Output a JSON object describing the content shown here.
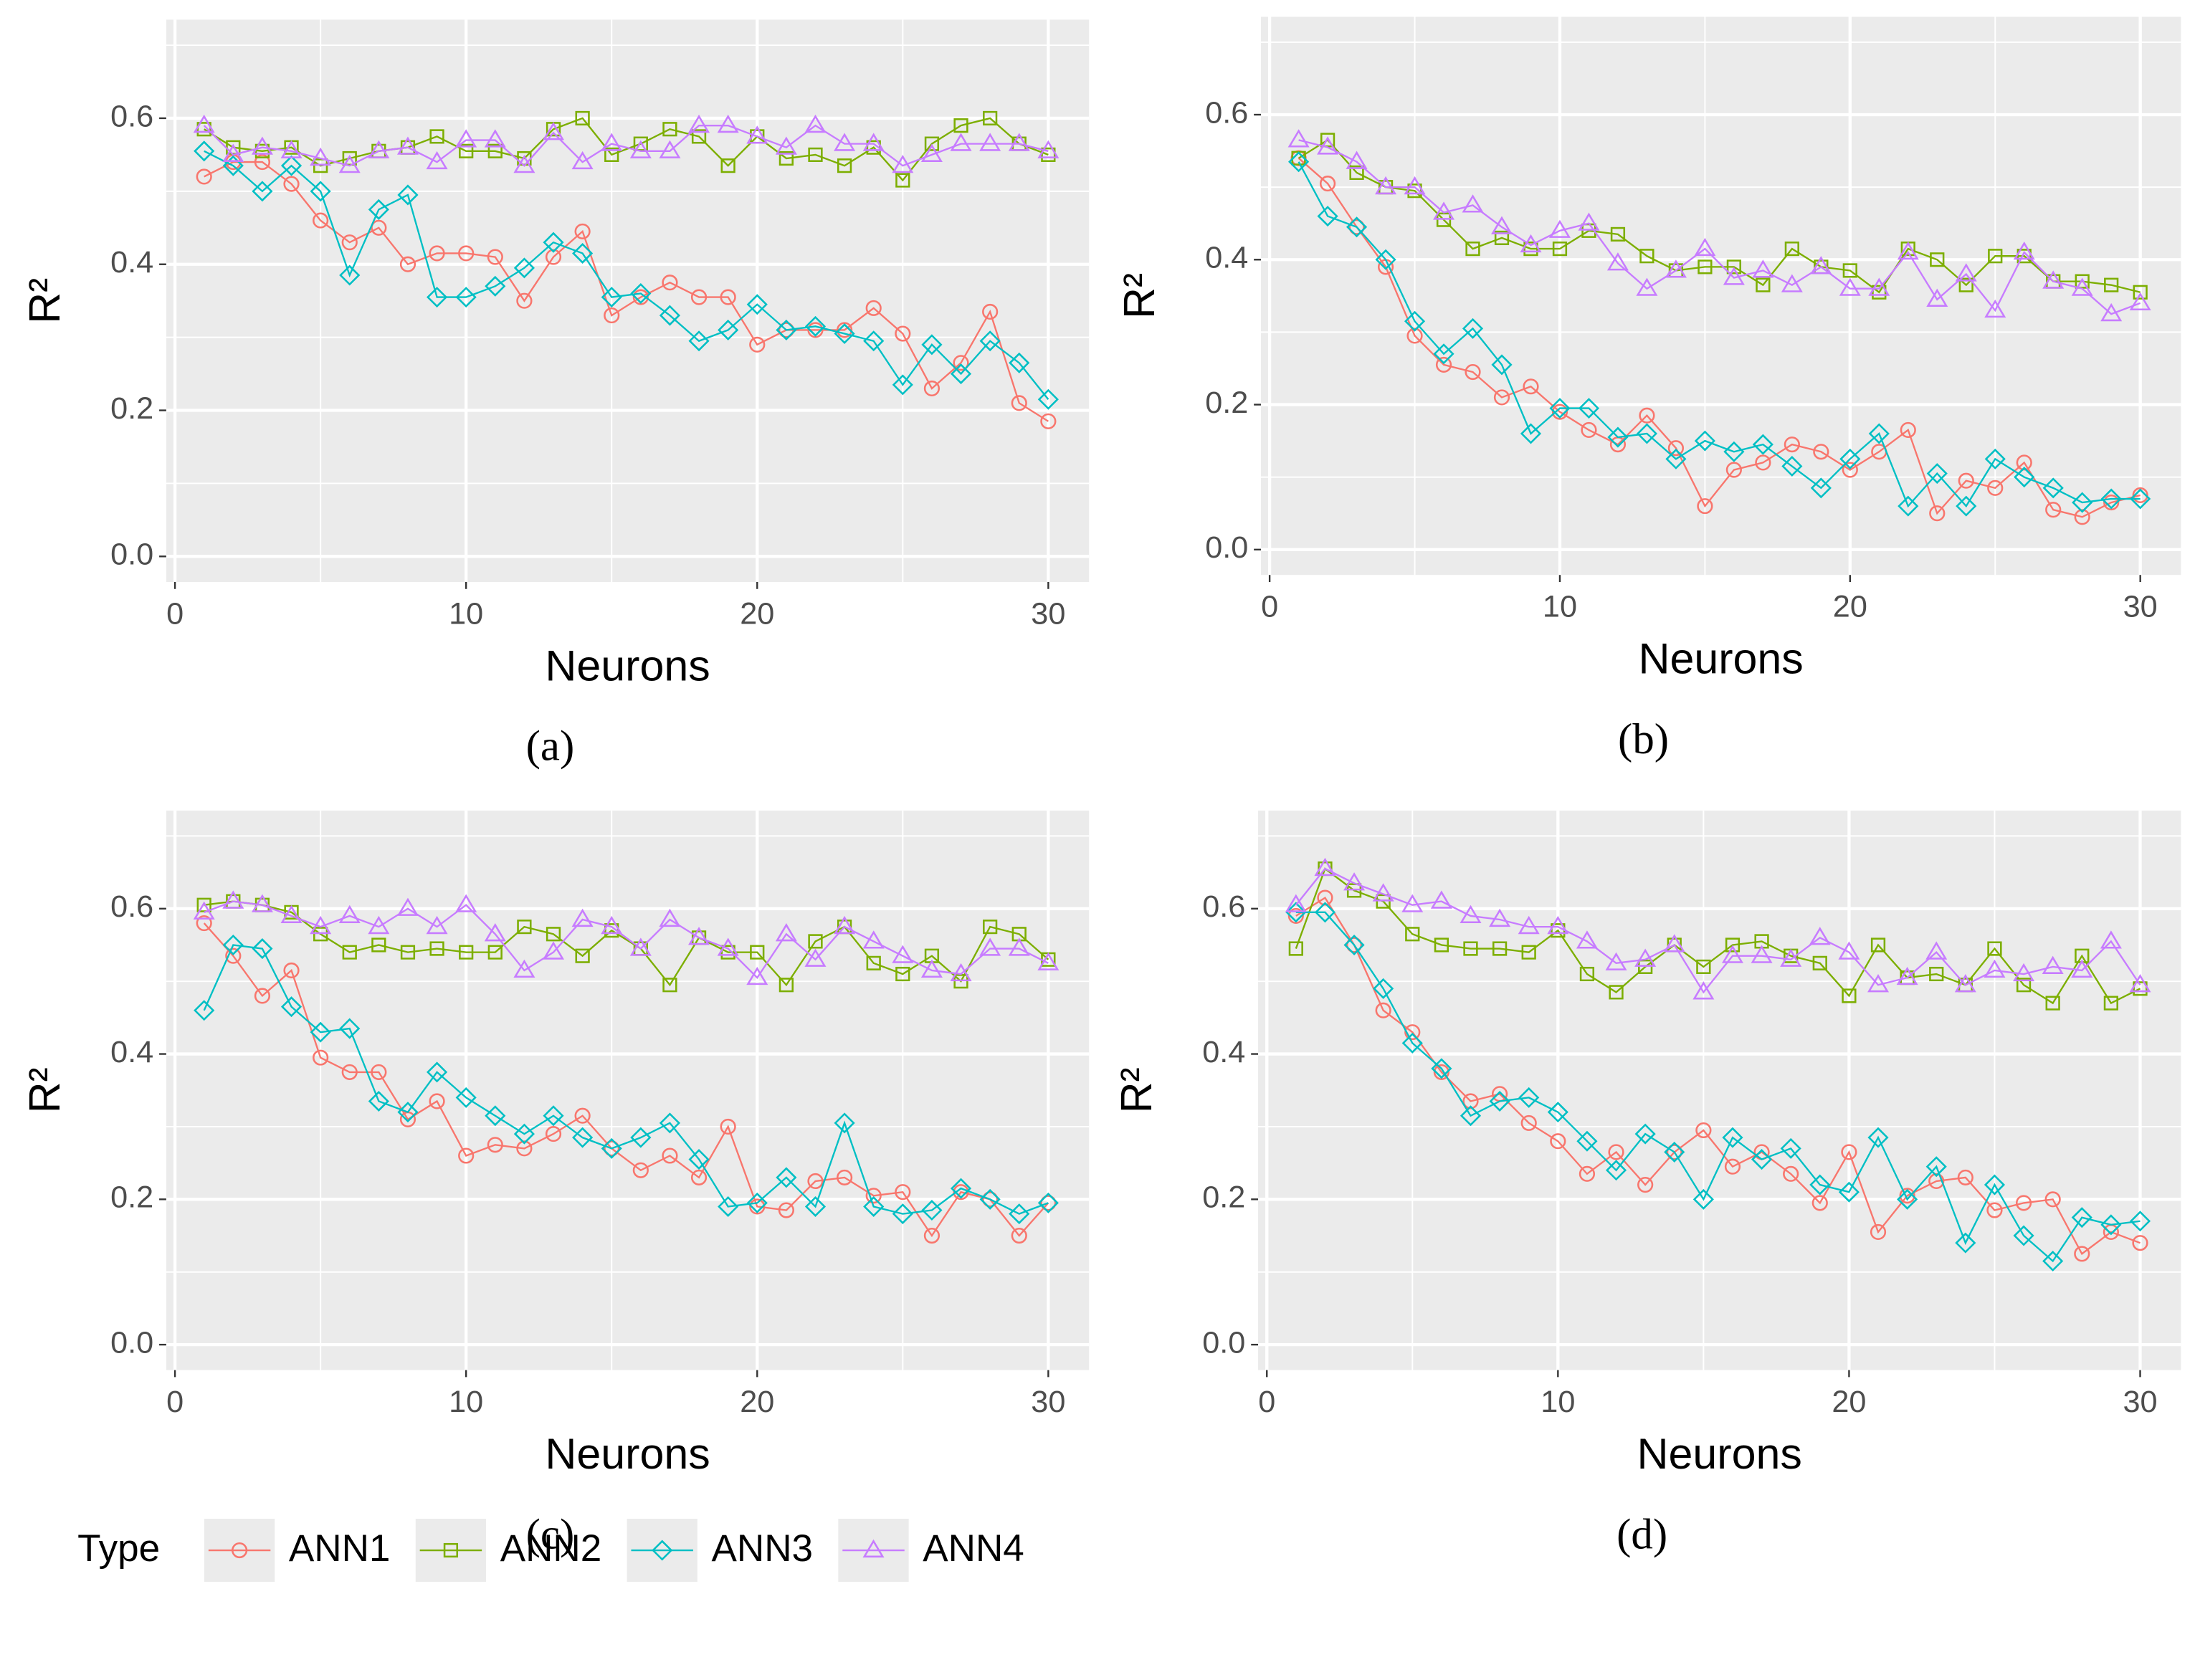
{
  "chart_data": [
    {
      "type": "line",
      "label": "(a)",
      "xlabel": "Neurons",
      "ylabel": "R²",
      "legend_title": "Type",
      "x": [
        1,
        2,
        3,
        4,
        5,
        6,
        7,
        8,
        9,
        10,
        11,
        12,
        13,
        14,
        15,
        16,
        17,
        18,
        19,
        20,
        21,
        22,
        23,
        24,
        25,
        26,
        27,
        28,
        29,
        30
      ],
      "xlim": [
        -0.3,
        31.4
      ],
      "ylim": [
        -0.035,
        0.735
      ],
      "xticks": [
        0,
        10,
        20,
        30
      ],
      "yticks": [
        {
          "value": 0,
          "label": "0.0"
        },
        0.2,
        0.4,
        0.6
      ],
      "x_minor_ticks": [
        5,
        15,
        25
      ],
      "y_minor_ticks": [
        0.1,
        0.3,
        0.5,
        0.7
      ],
      "grid": true,
      "series": [
        {
          "name": "ANN1",
          "color": "#F8766D",
          "marker": "circle",
          "values": [
            0.52,
            0.54,
            0.54,
            0.51,
            0.46,
            0.43,
            0.45,
            0.4,
            0.415,
            0.415,
            0.41,
            0.35,
            0.41,
            0.445,
            0.33,
            0.355,
            0.375,
            0.355,
            0.355,
            0.29,
            0.31,
            0.31,
            0.31,
            0.34,
            0.305,
            0.23,
            0.265,
            0.335,
            0.21,
            0.185
          ]
        },
        {
          "name": "ANN2",
          "color": "#7CAE00",
          "marker": "square",
          "values": [
            0.585,
            0.56,
            0.555,
            0.56,
            0.535,
            0.545,
            0.555,
            0.56,
            0.575,
            0.555,
            0.555,
            0.545,
            0.585,
            0.6,
            0.55,
            0.565,
            0.585,
            0.575,
            0.535,
            0.575,
            0.545,
            0.55,
            0.535,
            0.56,
            0.515,
            0.565,
            0.59,
            0.6,
            0.565,
            0.55
          ]
        },
        {
          "name": "ANN3",
          "color": "#00BFC4",
          "marker": "diamond",
          "values": [
            0.555,
            0.535,
            0.5,
            0.535,
            0.5,
            0.385,
            0.475,
            0.495,
            0.355,
            0.355,
            0.37,
            0.395,
            0.43,
            0.415,
            0.355,
            0.36,
            0.33,
            0.295,
            0.31,
            0.345,
            0.31,
            0.315,
            0.305,
            0.295,
            0.235,
            0.29,
            0.25,
            0.295,
            0.265,
            0.215
          ]
        },
        {
          "name": "ANN4",
          "color": "#C77CFF",
          "marker": "triangle",
          "values": [
            0.59,
            0.55,
            0.56,
            0.555,
            0.545,
            0.535,
            0.555,
            0.56,
            0.54,
            0.57,
            0.57,
            0.535,
            0.58,
            0.54,
            0.565,
            0.555,
            0.555,
            0.59,
            0.59,
            0.575,
            0.56,
            0.59,
            0.565,
            0.565,
            0.535,
            0.55,
            0.565,
            0.565,
            0.565,
            0.555
          ]
        }
      ]
    },
    {
      "type": "line",
      "label": "(b)",
      "xlabel": "Neurons",
      "ylabel": "R²",
      "x": [
        1,
        2,
        3,
        4,
        5,
        6,
        7,
        8,
        9,
        10,
        11,
        12,
        13,
        14,
        15,
        16,
        17,
        18,
        19,
        20,
        21,
        22,
        23,
        24,
        25,
        26,
        27,
        28,
        29,
        30
      ],
      "xlim": [
        -0.3,
        31.4
      ],
      "ylim": [
        -0.035,
        0.735
      ],
      "xticks": [
        0,
        10,
        20,
        30
      ],
      "yticks": [
        {
          "value": 0,
          "label": "0.0"
        },
        0.2,
        0.4,
        0.6
      ],
      "x_minor_ticks": [
        5,
        15,
        25
      ],
      "y_minor_ticks": [
        0.1,
        0.3,
        0.5,
        0.7
      ],
      "grid": true,
      "series": [
        {
          "name": "ANN1",
          "color": "#F8766D",
          "marker": "circle",
          "values": [
            0.54,
            0.505,
            0.445,
            0.39,
            0.295,
            0.255,
            0.245,
            0.21,
            0.225,
            0.19,
            0.165,
            0.145,
            0.185,
            0.14,
            0.06,
            0.11,
            0.12,
            0.145,
            0.135,
            0.11,
            0.135,
            0.165,
            0.05,
            0.095,
            0.085,
            0.12,
            0.055,
            0.045,
            0.065,
            0.075
          ]
        },
        {
          "name": "ANN2",
          "color": "#7CAE00",
          "marker": "square",
          "values": [
            0.54,
            0.565,
            0.52,
            0.5,
            0.495,
            0.455,
            0.415,
            0.43,
            0.415,
            0.415,
            0.44,
            0.435,
            0.405,
            0.385,
            0.39,
            0.39,
            0.365,
            0.415,
            0.39,
            0.385,
            0.355,
            0.415,
            0.4,
            0.365,
            0.405,
            0.405,
            0.37,
            0.37,
            0.365,
            0.355
          ]
        },
        {
          "name": "ANN3",
          "color": "#00BFC4",
          "marker": "diamond",
          "values": [
            0.535,
            0.46,
            0.445,
            0.4,
            0.315,
            0.27,
            0.305,
            0.255,
            0.16,
            0.195,
            0.195,
            0.155,
            0.16,
            0.125,
            0.15,
            0.135,
            0.145,
            0.115,
            0.085,
            0.125,
            0.16,
            0.06,
            0.105,
            0.06,
            0.125,
            0.1,
            0.085,
            0.065,
            0.07,
            0.07
          ]
        },
        {
          "name": "ANN4",
          "color": "#C77CFF",
          "marker": "triangle",
          "values": [
            0.565,
            0.555,
            0.535,
            0.5,
            0.5,
            0.465,
            0.475,
            0.445,
            0.42,
            0.44,
            0.45,
            0.395,
            0.36,
            0.385,
            0.415,
            0.375,
            0.385,
            0.365,
            0.39,
            0.36,
            0.36,
            0.41,
            0.345,
            0.38,
            0.33,
            0.41,
            0.37,
            0.36,
            0.325,
            0.34
          ]
        }
      ]
    },
    {
      "type": "line",
      "label": "(c)",
      "xlabel": "Neurons",
      "ylabel": "R²",
      "x": [
        1,
        2,
        3,
        4,
        5,
        6,
        7,
        8,
        9,
        10,
        11,
        12,
        13,
        14,
        15,
        16,
        17,
        18,
        19,
        20,
        21,
        22,
        23,
        24,
        25,
        26,
        27,
        28,
        29,
        30
      ],
      "xlim": [
        -0.3,
        31.4
      ],
      "ylim": [
        -0.035,
        0.735
      ],
      "xticks": [
        0,
        10,
        20,
        30
      ],
      "yticks": [
        {
          "value": 0,
          "label": "0.0"
        },
        0.2,
        0.4,
        0.6
      ],
      "x_minor_ticks": [
        5,
        15,
        25
      ],
      "y_minor_ticks": [
        0.1,
        0.3,
        0.5,
        0.7
      ],
      "grid": true,
      "series": [
        {
          "name": "ANN1",
          "color": "#F8766D",
          "marker": "circle",
          "values": [
            0.58,
            0.535,
            0.48,
            0.515,
            0.395,
            0.375,
            0.375,
            0.31,
            0.335,
            0.26,
            0.275,
            0.27,
            0.29,
            0.315,
            0.27,
            0.24,
            0.26,
            0.23,
            0.3,
            0.19,
            0.185,
            0.225,
            0.23,
            0.205,
            0.21,
            0.15,
            0.21,
            0.2,
            0.15,
            0.195
          ]
        },
        {
          "name": "ANN2",
          "color": "#7CAE00",
          "marker": "square",
          "values": [
            0.605,
            0.61,
            0.605,
            0.595,
            0.565,
            0.54,
            0.55,
            0.54,
            0.545,
            0.54,
            0.54,
            0.575,
            0.565,
            0.535,
            0.57,
            0.545,
            0.495,
            0.56,
            0.54,
            0.54,
            0.495,
            0.555,
            0.575,
            0.525,
            0.51,
            0.535,
            0.5,
            0.575,
            0.565,
            0.53
          ]
        },
        {
          "name": "ANN3",
          "color": "#00BFC4",
          "marker": "diamond",
          "values": [
            0.46,
            0.55,
            0.545,
            0.465,
            0.43,
            0.435,
            0.335,
            0.32,
            0.375,
            0.34,
            0.315,
            0.29,
            0.315,
            0.285,
            0.27,
            0.285,
            0.305,
            0.255,
            0.19,
            0.195,
            0.23,
            0.19,
            0.305,
            0.19,
            0.18,
            0.185,
            0.215,
            0.2,
            0.18,
            0.195
          ]
        },
        {
          "name": "ANN4",
          "color": "#C77CFF",
          "marker": "triangle",
          "values": [
            0.595,
            0.61,
            0.605,
            0.59,
            0.575,
            0.59,
            0.575,
            0.6,
            0.575,
            0.605,
            0.565,
            0.515,
            0.54,
            0.585,
            0.575,
            0.545,
            0.585,
            0.56,
            0.545,
            0.505,
            0.565,
            0.53,
            0.575,
            0.555,
            0.535,
            0.515,
            0.51,
            0.545,
            0.545,
            0.525
          ]
        }
      ]
    },
    {
      "type": "line",
      "label": "(d)",
      "xlabel": "Neurons",
      "ylabel": "R²",
      "x": [
        1,
        2,
        3,
        4,
        5,
        6,
        7,
        8,
        9,
        10,
        11,
        12,
        13,
        14,
        15,
        16,
        17,
        18,
        19,
        20,
        21,
        22,
        23,
        24,
        25,
        26,
        27,
        28,
        29,
        30
      ],
      "xlim": [
        -0.3,
        31.4
      ],
      "ylim": [
        -0.035,
        0.735
      ],
      "xticks": [
        0,
        10,
        20,
        30
      ],
      "yticks": [
        {
          "value": 0,
          "label": "0.0"
        },
        0.2,
        0.4,
        0.6
      ],
      "x_minor_ticks": [
        5,
        15,
        25
      ],
      "y_minor_ticks": [
        0.1,
        0.3,
        0.5,
        0.7
      ],
      "grid": true,
      "series": [
        {
          "name": "ANN1",
          "color": "#F8766D",
          "marker": "circle",
          "values": [
            0.59,
            0.615,
            0.55,
            0.46,
            0.43,
            0.375,
            0.335,
            0.345,
            0.305,
            0.28,
            0.235,
            0.265,
            0.22,
            0.265,
            0.295,
            0.245,
            0.265,
            0.235,
            0.195,
            0.265,
            0.155,
            0.205,
            0.225,
            0.23,
            0.185,
            0.195,
            0.2,
            0.125,
            0.155,
            0.14
          ]
        },
        {
          "name": "ANN2",
          "color": "#7CAE00",
          "marker": "square",
          "values": [
            0.545,
            0.655,
            0.625,
            0.61,
            0.565,
            0.55,
            0.545,
            0.545,
            0.54,
            0.57,
            0.51,
            0.485,
            0.52,
            0.55,
            0.52,
            0.55,
            0.555,
            0.535,
            0.525,
            0.48,
            0.55,
            0.505,
            0.51,
            0.495,
            0.545,
            0.495,
            0.47,
            0.535,
            0.47,
            0.49
          ]
        },
        {
          "name": "ANN3",
          "color": "#00BFC4",
          "marker": "diamond",
          "values": [
            0.595,
            0.595,
            0.55,
            0.49,
            0.415,
            0.38,
            0.315,
            0.335,
            0.34,
            0.32,
            0.28,
            0.24,
            0.29,
            0.265,
            0.2,
            0.285,
            0.255,
            0.27,
            0.22,
            0.21,
            0.285,
            0.2,
            0.245,
            0.14,
            0.22,
            0.15,
            0.115,
            0.175,
            0.165,
            0.17
          ]
        },
        {
          "name": "ANN4",
          "color": "#C77CFF",
          "marker": "triangle",
          "values": [
            0.605,
            0.655,
            0.635,
            0.62,
            0.605,
            0.61,
            0.59,
            0.585,
            0.575,
            0.575,
            0.555,
            0.525,
            0.53,
            0.55,
            0.485,
            0.535,
            0.535,
            0.53,
            0.56,
            0.54,
            0.495,
            0.505,
            0.54,
            0.495,
            0.515,
            0.51,
            0.52,
            0.515,
            0.555,
            0.495
          ]
        }
      ]
    }
  ]
}
